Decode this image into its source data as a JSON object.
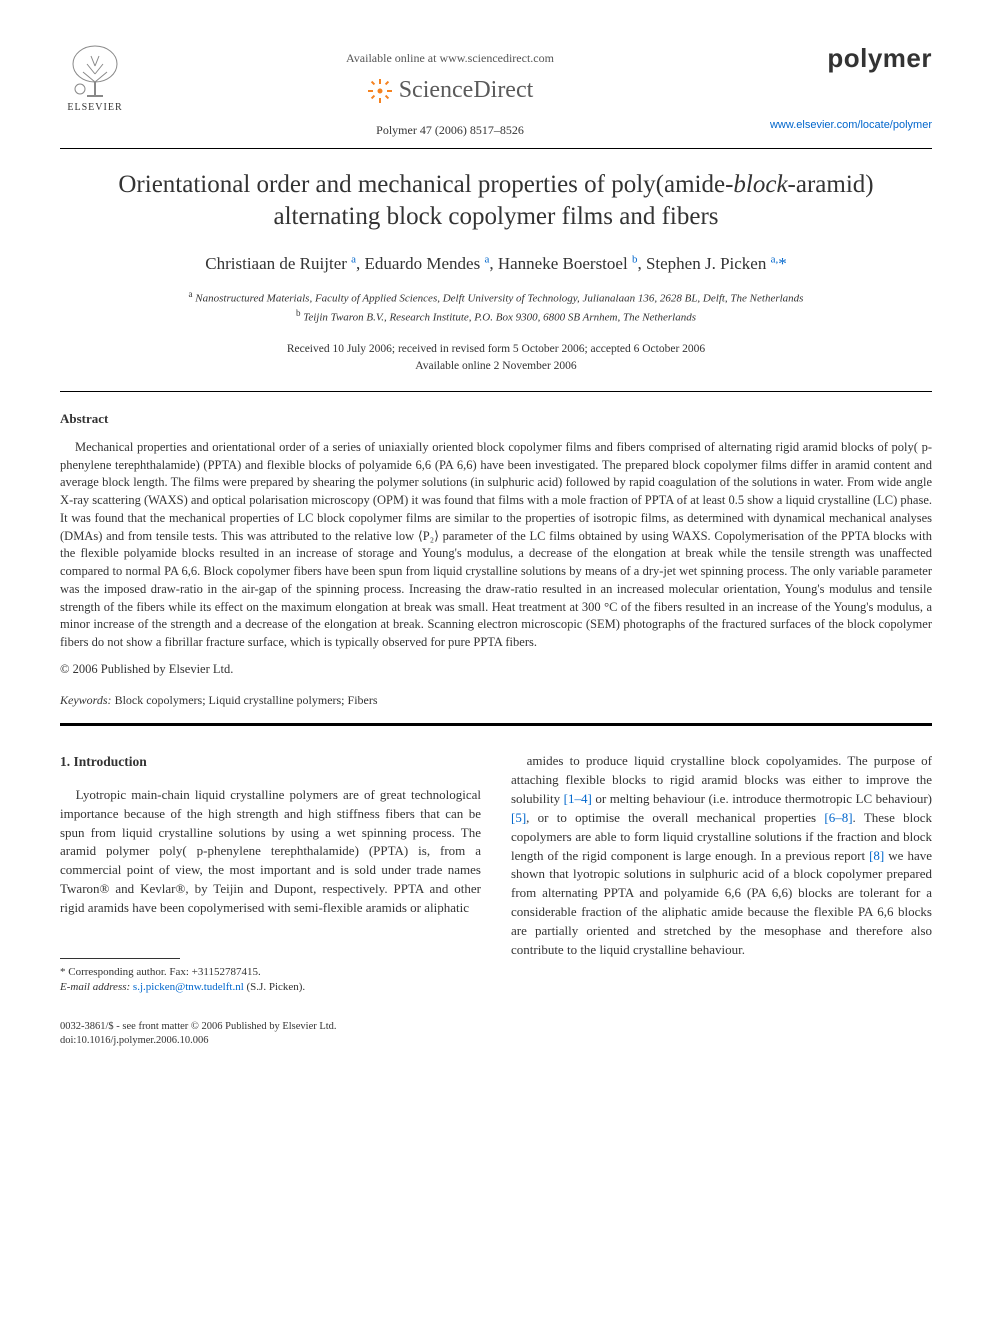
{
  "header": {
    "available_online": "Available online at www.sciencedirect.com",
    "sciencedirect": "ScienceDirect",
    "journal_ref": "Polymer 47 (2006) 8517–8526",
    "journal_name": "polymer",
    "journal_url": "www.elsevier.com/locate/polymer",
    "elsevier_label": "ELSEVIER"
  },
  "title": {
    "pre": "Orientational order and mechanical properties of poly(amide-",
    "italic": "block",
    "post": "-aramid) alternating block copolymer films and fibers"
  },
  "authors_html": "Christiaan de Ruijter <sup>a</sup>, Eduardo Mendes <sup>a</sup>, Hanneke Boerstoel <sup>b</sup>, Stephen J. Picken <sup>a,</sup><span class='star'>*</span>",
  "affiliations": {
    "a": "Nanostructured Materials, Faculty of Applied Sciences, Delft University of Technology, Julianalaan 136, 2628 BL, Delft, The Netherlands",
    "b": "Teijin Twaron B.V., Research Institute, P.O. Box 9300, 6800 SB Arnhem, The Netherlands"
  },
  "dates": {
    "line1": "Received 10 July 2006; received in revised form 5 October 2006; accepted 6 October 2006",
    "line2": "Available online 2 November 2006"
  },
  "abstract": {
    "heading": "Abstract",
    "body": "Mechanical properties and orientational order of a series of uniaxially oriented block copolymer films and fibers comprised of alternating rigid aramid blocks of poly( p-phenylene terephthalamide) (PPTA) and flexible blocks of polyamide 6,6 (PA 6,6) have been investigated. The prepared block copolymer films differ in aramid content and average block length. The films were prepared by shearing the polymer solutions (in sulphuric acid) followed by rapid coagulation of the solutions in water. From wide angle X-ray scattering (WAXS) and optical polarisation microscopy (OPM) it was found that films with a mole fraction of PPTA of at least 0.5 show a liquid crystalline (LC) phase. It was found that the mechanical properties of LC block copolymer films are similar to the properties of isotropic films, as determined with dynamical mechanical analyses (DMAs) and from tensile tests. This was attributed to the relative low ⟨P₂⟩ parameter of the LC films obtained by using WAXS. Copolymerisation of the PPTA blocks with the flexible polyamide blocks resulted in an increase of storage and Young's modulus, a decrease of the elongation at break while the tensile strength was unaffected compared to normal PA 6,6. Block copolymer fibers have been spun from liquid crystalline solutions by means of a dry-jet wet spinning process. The only variable parameter was the imposed draw-ratio in the air-gap of the spinning process. Increasing the draw-ratio resulted in an increased molecular orientation, Young's modulus and tensile strength of the fibers while its effect on the maximum elongation at break was small. Heat treatment at 300 °C of the fibers resulted in an increase of the Young's modulus, a minor increase of the strength and a decrease of the elongation at break. Scanning electron microscopic (SEM) photographs of the fractured surfaces of the block copolymer fibers do not show a fibrillar fracture surface, which is typically observed for pure PPTA fibers.",
    "copyright": "© 2006 Published by Elsevier Ltd."
  },
  "keywords": {
    "label": "Keywords:",
    "text": " Block copolymers; Liquid crystalline polymers; Fibers"
  },
  "intro": {
    "heading": "1. Introduction",
    "col1": "Lyotropic main-chain liquid crystalline polymers are of great technological importance because of the high strength and high stiffness fibers that can be spun from liquid crystalline solutions by using a wet spinning process. The aramid polymer poly( p-phenylene terephthalamide) (PPTA) is, from a commercial point of view, the most important and is sold under trade names Twaron® and Kevlar®, by Teijin and Dupont, respectively. PPTA and other rigid aramids have been copolymerised with semi-flexible aramids or aliphatic",
    "col2_pre": "amides to produce liquid crystalline block copolyamides. The purpose of attaching flexible blocks to rigid aramid blocks was either to improve the solubility ",
    "ref1": "[1–4]",
    "col2_mid1": " or melting behaviour (i.e. introduce thermotropic LC behaviour) ",
    "ref2": "[5]",
    "col2_mid2": ", or to optimise the overall mechanical properties ",
    "ref3": "[6–8]",
    "col2_mid3": ". These block copolymers are able to form liquid crystalline solutions if the fraction and block length of the rigid component is large enough. In a previous report ",
    "ref4": "[8]",
    "col2_post": " we have shown that lyotropic solutions in sulphuric acid of a block copolymer prepared from alternating PPTA and polyamide 6,6 (PA 6,6) blocks are tolerant for a considerable fraction of the aliphatic amide because the flexible PA 6,6 blocks are partially oriented and stretched by the mesophase and therefore also contribute to the liquid crystalline behaviour."
  },
  "footnote": {
    "corr": "* Corresponding author. Fax: +31152787415.",
    "email_label": "E-mail address: ",
    "email": "s.j.picken@tnw.tudelft.nl",
    "email_post": " (S.J. Picken)."
  },
  "footer": {
    "line1": "0032-3861/$ - see front matter © 2006 Published by Elsevier Ltd.",
    "line2": "doi:10.1016/j.polymer.2006.10.006"
  },
  "colors": {
    "link": "#0066cc",
    "text": "#333333",
    "logo_orange": "#f58220",
    "background": "#ffffff"
  }
}
